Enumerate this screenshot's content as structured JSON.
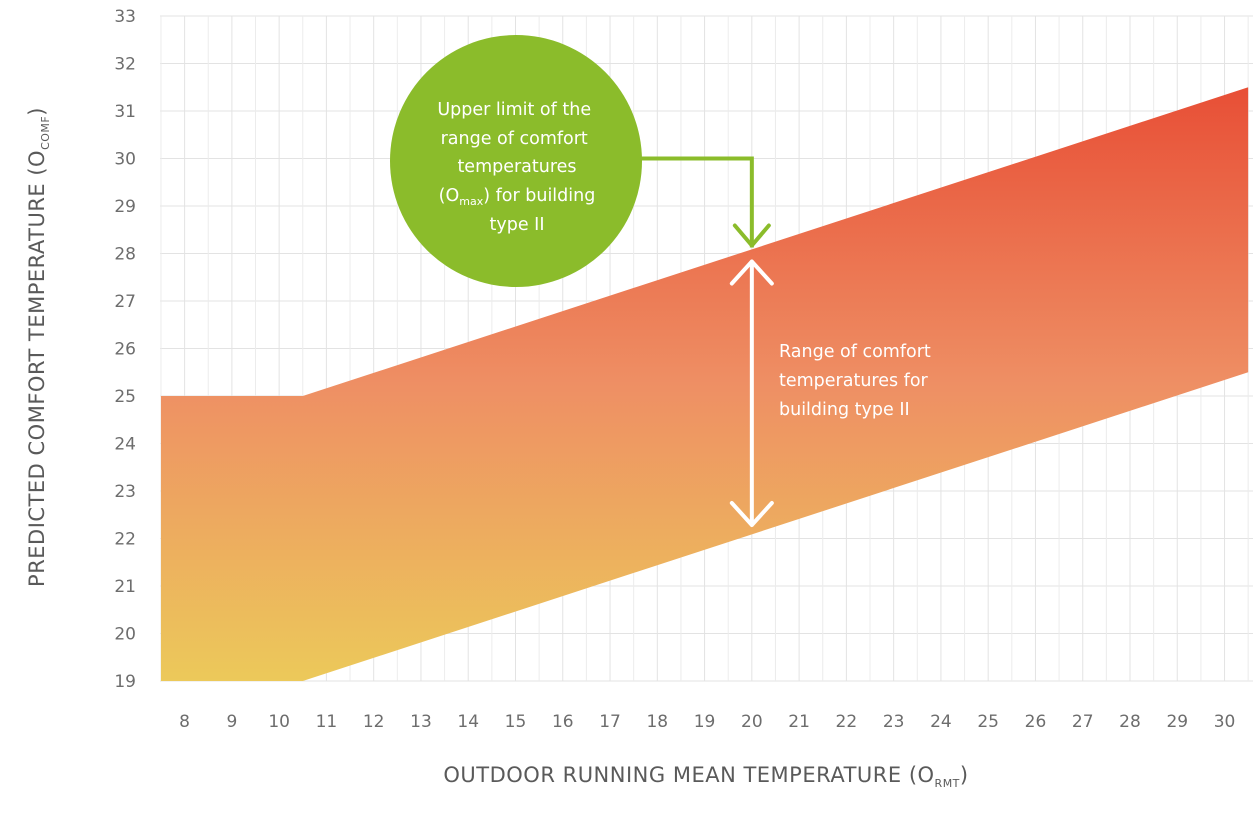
{
  "chart_data": {
    "type": "area",
    "title": "",
    "xlabel": {
      "main": "OUTDOOR RUNNING MEAN TEMPERATURE (O",
      "sub": "RMT",
      "close": ")"
    },
    "ylabel": {
      "main": "PREDICTED COMFORT TEMPERATURE (O",
      "sub": "COMF",
      "close": ")"
    },
    "xlim": [
      7.5,
      30.5
    ],
    "ylim": [
      19,
      33
    ],
    "x_ticks": [
      8,
      9,
      10,
      11,
      12,
      13,
      14,
      15,
      16,
      17,
      18,
      19,
      20,
      21,
      22,
      23,
      24,
      25,
      26,
      27,
      28,
      29,
      30
    ],
    "y_ticks": [
      19,
      20,
      21,
      22,
      23,
      24,
      25,
      26,
      27,
      28,
      29,
      30,
      31,
      32,
      33
    ],
    "grid": true,
    "band": {
      "name": "Range of comfort temperatures for building type II",
      "upper": [
        [
          7.5,
          25
        ],
        [
          10.5,
          25
        ],
        [
          30.5,
          31.5
        ]
      ],
      "lower": [
        [
          7.5,
          19
        ],
        [
          10.5,
          19
        ],
        [
          30.5,
          25.5
        ]
      ],
      "colors": {
        "top": "#e84f36",
        "mid": "#ee8f64",
        "bottom": "#ecc95a"
      }
    },
    "annotations": {
      "upper_limit": {
        "lines": [
          "Upper limit of the",
          "range of comfort",
          "temperatures"
        ],
        "line4": {
          "pre": "(O",
          "sub": "max",
          "post": ") for building"
        },
        "line5": "type II",
        "x": 20,
        "color": "#8bbc2b"
      },
      "range": {
        "lines": [
          "Range of comfort",
          "temperatures for",
          "building type II"
        ],
        "x": 20,
        "from": 22.2,
        "to": 28.0
      }
    }
  }
}
